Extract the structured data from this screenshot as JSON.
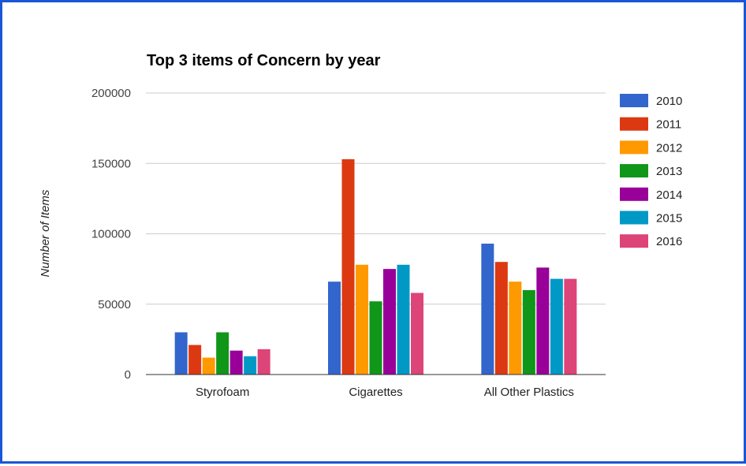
{
  "chart_data": {
    "type": "bar",
    "title": "Top 3 items of Concern by year",
    "xlabel": "",
    "ylabel": "Number of Items",
    "ylim": [
      0,
      200000
    ],
    "yticks": [
      "0",
      "50000",
      "100000",
      "150000",
      "200000"
    ],
    "categories": [
      "Styrofoam",
      "Cigarettes",
      "All Other Plastics"
    ],
    "series": [
      {
        "name": "2010",
        "color": "#3366cc",
        "values": [
          30000,
          66000,
          93000
        ]
      },
      {
        "name": "2011",
        "color": "#dc3912",
        "values": [
          21000,
          153000,
          80000
        ]
      },
      {
        "name": "2012",
        "color": "#ff9900",
        "values": [
          12000,
          78000,
          66000
        ]
      },
      {
        "name": "2013",
        "color": "#109618",
        "values": [
          30000,
          52000,
          60000
        ]
      },
      {
        "name": "2014",
        "color": "#990099",
        "values": [
          17000,
          75000,
          76000
        ]
      },
      {
        "name": "2015",
        "color": "#0099c6",
        "values": [
          13000,
          78000,
          68000
        ]
      },
      {
        "name": "2016",
        "color": "#dd4477",
        "values": [
          18000,
          58000,
          68000
        ]
      }
    ],
    "grid": true,
    "legend_position": "right"
  }
}
